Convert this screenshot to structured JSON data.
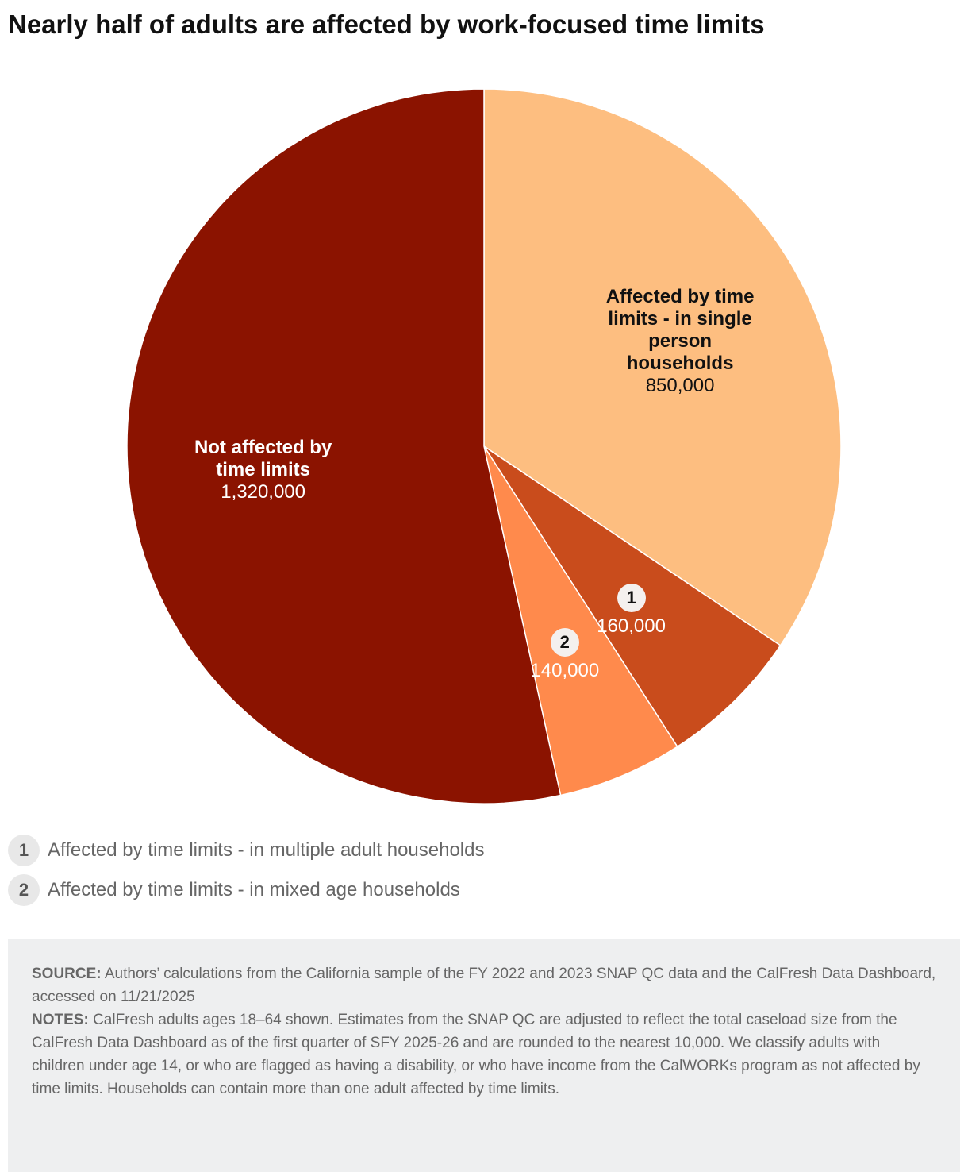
{
  "chart_data": {
    "type": "pie",
    "title": "Nearly half of adults are affected by work-focused time limits",
    "categories": [
      "Affected by time limits - in single person households",
      "Affected by time limits - in multiple adult households",
      "Affected by time limits - in mixed age households",
      "Not affected by time limits"
    ],
    "values": [
      850000,
      160000,
      140000,
      1320000
    ],
    "value_labels": [
      "850,000",
      "160,000",
      "140,000",
      "1,320,000"
    ],
    "colors": [
      "#fdbe80",
      "#c94c1c",
      "#ff8a4c",
      "#8b1300"
    ],
    "footnote_keys": [
      null,
      "1",
      "2",
      null
    ],
    "source_label": "SOURCE:",
    "source": "Authors’ calculations from the California sample of the FY 2022 and 2023 SNAP QC data and the CalFresh Data Dashboard, accessed on 11/21/2025",
    "notes_label": "NOTES:",
    "notes": "CalFresh adults ages 18–64 shown. Estimates from the SNAP QC are adjusted to reflect the total caseload size from the CalFresh Data Dashboard as of the first quarter of SFY 2025-26 and are rounded to the nearest 10,000. We classify adults with children under age 14, or who are flagged as having a disability, or who have income from the CalWORKs program as not affected by time limits. Households can contain more than one adult affected by time limits."
  }
}
